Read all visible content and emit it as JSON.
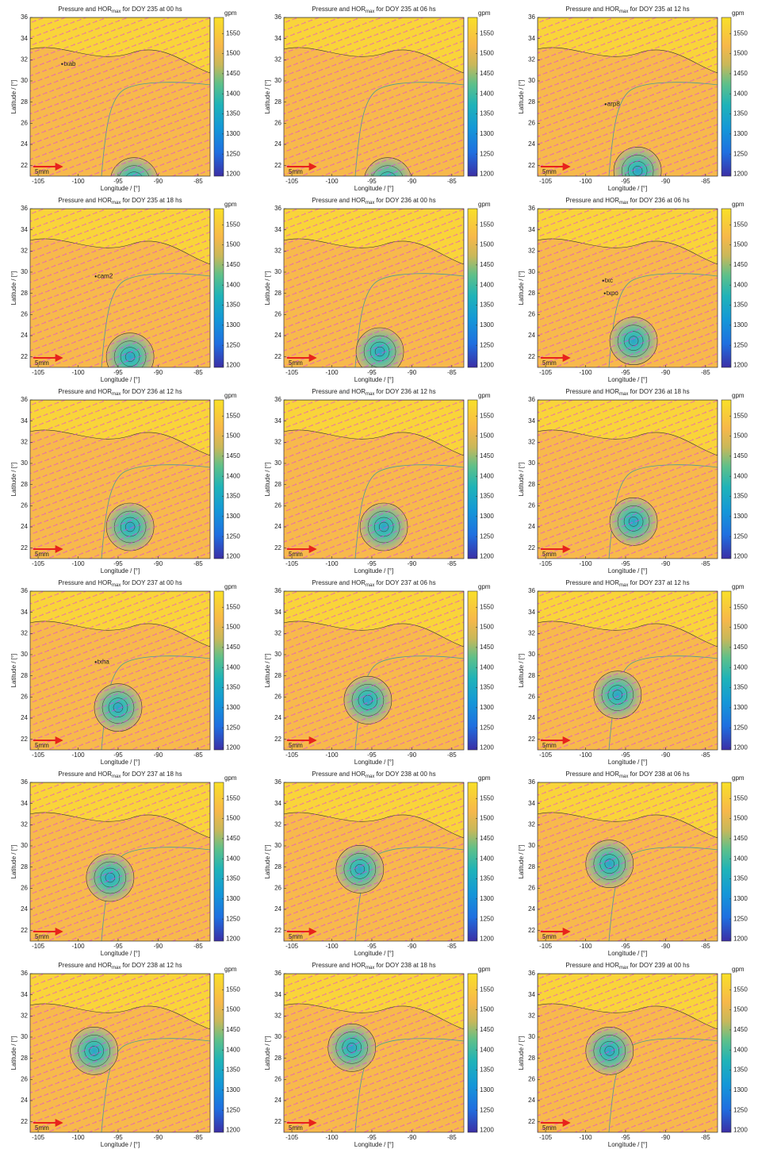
{
  "chart_data": [
    {
      "type": "map",
      "title": [
        "Pressure and HOR",
        "max",
        " for DOY 235 at 00 hs"
      ],
      "xlabel": "Longitude / [°]",
      "ylabel": "Latitude / [°]",
      "xlim": [
        -106,
        -83.5
      ],
      "xticks": [
        -105,
        -100,
        -95,
        -90,
        -85
      ],
      "ylim": [
        21,
        36
      ],
      "yticks": [
        22,
        24,
        26,
        28,
        30,
        32,
        34,
        36
      ],
      "colorbar": {
        "label": "gpm",
        "lim": [
          1195,
          1590
        ],
        "ticks": [
          1200,
          1250,
          1300,
          1350,
          1400,
          1450,
          1500,
          1550
        ]
      },
      "scale_label": "5mm",
      "center": {
        "lon": -93,
        "lat": 20.5
      },
      "annotations": [
        {
          "text": "txab",
          "lon": -102,
          "lat": 31.6
        }
      ]
    },
    {
      "type": "map",
      "title": [
        "Pressure and HOR",
        "max",
        " for DOY 235 at 06 hs"
      ],
      "xlabel": "Longitude / [°]",
      "ylabel": "Latitude / [°]",
      "xlim": [
        -106,
        -83.5
      ],
      "xticks": [
        -105,
        -100,
        -95,
        -90,
        -85
      ],
      "ylim": [
        21,
        36
      ],
      "yticks": [
        22,
        24,
        26,
        28,
        30,
        32,
        34,
        36
      ],
      "colorbar": {
        "label": "gpm",
        "lim": [
          1195,
          1590
        ],
        "ticks": [
          1200,
          1250,
          1300,
          1350,
          1400,
          1450,
          1500,
          1550
        ]
      },
      "scale_label": "5mm",
      "center": {
        "lon": -93,
        "lat": 20.5
      },
      "annotations": []
    },
    {
      "type": "map",
      "title": [
        "Pressure and HOR",
        "max",
        " for DOY 235 at 12 hs"
      ],
      "xlabel": "Longitude / [°]",
      "ylabel": "Latitude / [°]",
      "xlim": [
        -106,
        -83.5
      ],
      "xticks": [
        -105,
        -100,
        -95,
        -90,
        -85
      ],
      "ylim": [
        21,
        36
      ],
      "yticks": [
        22,
        24,
        26,
        28,
        30,
        32,
        34,
        36
      ],
      "colorbar": {
        "label": "gpm",
        "lim": [
          1195,
          1590
        ],
        "ticks": [
          1200,
          1250,
          1300,
          1350,
          1400,
          1450,
          1500,
          1550
        ]
      },
      "scale_label": "5mm",
      "center": {
        "lon": -93.5,
        "lat": 21.5
      },
      "annotations": [
        {
          "text": "arp8",
          "lon": -97.5,
          "lat": 27.8
        }
      ]
    },
    {
      "type": "map",
      "title": [
        "Pressure and HOR",
        "max",
        " for DOY 235 at 18 hs"
      ],
      "xlabel": "Longitude / [°]",
      "ylabel": "Latitude / [°]",
      "xlim": [
        -106,
        -83.5
      ],
      "xticks": [
        -105,
        -100,
        -95,
        -90,
        -85
      ],
      "ylim": [
        21,
        36
      ],
      "yticks": [
        22,
        24,
        26,
        28,
        30,
        32,
        34,
        36
      ],
      "colorbar": {
        "label": "gpm",
        "lim": [
          1195,
          1590
        ],
        "ticks": [
          1200,
          1250,
          1300,
          1350,
          1400,
          1450,
          1500,
          1550
        ]
      },
      "scale_label": "5mm",
      "center": {
        "lon": -93.5,
        "lat": 22
      },
      "annotations": [
        {
          "text": "cam2",
          "lon": -97.8,
          "lat": 29.6
        }
      ]
    },
    {
      "type": "map",
      "title": [
        "Pressure and HOR",
        "max",
        " for DOY 236 at 00 hs"
      ],
      "xlabel": "Longitude / [°]",
      "ylabel": "Latitude / [°]",
      "xlim": [
        -106,
        -83.5
      ],
      "xticks": [
        -105,
        -100,
        -95,
        -90,
        -85
      ],
      "ylim": [
        21,
        36
      ],
      "yticks": [
        22,
        24,
        26,
        28,
        30,
        32,
        34,
        36
      ],
      "colorbar": {
        "label": "gpm",
        "lim": [
          1195,
          1590
        ],
        "ticks": [
          1200,
          1250,
          1300,
          1350,
          1400,
          1450,
          1500,
          1550
        ]
      },
      "scale_label": "5mm",
      "center": {
        "lon": -94,
        "lat": 22.5
      },
      "annotations": []
    },
    {
      "type": "map",
      "title": [
        "Pressure and HOR",
        "max",
        " for DOY 236 at 06 hs"
      ],
      "xlabel": "Longitude / [°]",
      "ylabel": "Latitude / [°]",
      "xlim": [
        -106,
        -83.5
      ],
      "xticks": [
        -105,
        -100,
        -95,
        -90,
        -85
      ],
      "ylim": [
        21,
        36
      ],
      "yticks": [
        22,
        24,
        26,
        28,
        30,
        32,
        34,
        36
      ],
      "colorbar": {
        "label": "gpm",
        "lim": [
          1195,
          1590
        ],
        "ticks": [
          1200,
          1250,
          1300,
          1350,
          1400,
          1450,
          1500,
          1550
        ]
      },
      "scale_label": "5mm",
      "center": {
        "lon": -94,
        "lat": 23.5
      },
      "annotations": [
        {
          "text": "txc",
          "lon": -97.8,
          "lat": 29.2
        },
        {
          "text": "txpo",
          "lon": -97.6,
          "lat": 28
        }
      ]
    },
    {
      "type": "map",
      "title": [
        "Pressure and HOR",
        "max",
        " for DOY 236 at 12 hs"
      ],
      "xlabel": "Longitude / [°]",
      "ylabel": "Latitude / [°]",
      "xlim": [
        -106,
        -83.5
      ],
      "xticks": [
        -105,
        -100,
        -95,
        -90,
        -85
      ],
      "ylim": [
        21,
        36
      ],
      "yticks": [
        22,
        24,
        26,
        28,
        30,
        32,
        34,
        36
      ],
      "colorbar": {
        "label": "gpm",
        "lim": [
          1195,
          1590
        ],
        "ticks": [
          1200,
          1250,
          1300,
          1350,
          1400,
          1450,
          1500,
          1550
        ]
      },
      "scale_label": "5mm",
      "center": {
        "lon": -93.5,
        "lat": 24
      },
      "annotations": []
    },
    {
      "type": "map",
      "title": [
        "Pressure and HOR",
        "max",
        " for DOY 236 at 12 hs"
      ],
      "xlabel": "Longitude / [°]",
      "ylabel": "Latitude / [°]",
      "xlim": [
        -106,
        -83.5
      ],
      "xticks": [
        -105,
        -100,
        -95,
        -90,
        -85
      ],
      "ylim": [
        21,
        36
      ],
      "yticks": [
        22,
        24,
        26,
        28,
        30,
        32,
        34,
        36
      ],
      "colorbar": {
        "label": "gpm",
        "lim": [
          1195,
          1590
        ],
        "ticks": [
          1200,
          1250,
          1300,
          1350,
          1400,
          1450,
          1500,
          1550
        ]
      },
      "scale_label": "5mm",
      "center": {
        "lon": -93.5,
        "lat": 24
      },
      "annotations": []
    },
    {
      "type": "map",
      "title": [
        "Pressure and HOR",
        "max",
        " for DOY 236 at 18 hs"
      ],
      "xlabel": "Longitude / [°]",
      "ylabel": "Latitude / [°]",
      "xlim": [
        -106,
        -83.5
      ],
      "xticks": [
        -105,
        -100,
        -95,
        -90,
        -85
      ],
      "ylim": [
        21,
        36
      ],
      "yticks": [
        22,
        24,
        26,
        28,
        30,
        32,
        34,
        36
      ],
      "colorbar": {
        "label": "gpm",
        "lim": [
          1195,
          1590
        ],
        "ticks": [
          1200,
          1250,
          1300,
          1350,
          1400,
          1450,
          1500,
          1550
        ]
      },
      "scale_label": "5mm",
      "center": {
        "lon": -94,
        "lat": 24.5
      },
      "annotations": []
    },
    {
      "type": "map",
      "title": [
        "Pressure and HOR",
        "max",
        " for DOY 237 at 00 hs"
      ],
      "xlabel": "Longitude / [°]",
      "ylabel": "Latitude / [°]",
      "xlim": [
        -106,
        -83.5
      ],
      "xticks": [
        -105,
        -100,
        -95,
        -90,
        -85
      ],
      "ylim": [
        21,
        36
      ],
      "yticks": [
        22,
        24,
        26,
        28,
        30,
        32,
        34,
        36
      ],
      "colorbar": {
        "label": "gpm",
        "lim": [
          1195,
          1590
        ],
        "ticks": [
          1200,
          1250,
          1300,
          1350,
          1400,
          1450,
          1500,
          1550
        ]
      },
      "scale_label": "5mm",
      "center": {
        "lon": -95,
        "lat": 25
      },
      "annotations": [
        {
          "text": "txha",
          "lon": -97.8,
          "lat": 29.3
        }
      ]
    },
    {
      "type": "map",
      "title": [
        "Pressure and HOR",
        "max",
        " for DOY 237 at 06 hs"
      ],
      "xlabel": "Longitude / [°]",
      "ylabel": "Latitude / [°]",
      "xlim": [
        -106,
        -83.5
      ],
      "xticks": [
        -105,
        -100,
        -95,
        -90,
        -85
      ],
      "ylim": [
        21,
        36
      ],
      "yticks": [
        22,
        24,
        26,
        28,
        30,
        32,
        34,
        36
      ],
      "colorbar": {
        "label": "gpm",
        "lim": [
          1195,
          1590
        ],
        "ticks": [
          1200,
          1250,
          1300,
          1350,
          1400,
          1450,
          1500,
          1550
        ]
      },
      "scale_label": "5mm",
      "center": {
        "lon": -95.5,
        "lat": 25.7
      },
      "annotations": []
    },
    {
      "type": "map",
      "title": [
        "Pressure and HOR",
        "max",
        " for DOY 237 at 12 hs"
      ],
      "xlabel": "Longitude / [°]",
      "ylabel": "Latitude / [°]",
      "xlim": [
        -106,
        -83.5
      ],
      "xticks": [
        -105,
        -100,
        -95,
        -90,
        -85
      ],
      "ylim": [
        21,
        36
      ],
      "yticks": [
        22,
        24,
        26,
        28,
        30,
        32,
        34,
        36
      ],
      "colorbar": {
        "label": "gpm",
        "lim": [
          1195,
          1590
        ],
        "ticks": [
          1200,
          1250,
          1300,
          1350,
          1400,
          1450,
          1500,
          1550
        ]
      },
      "scale_label": "5mm",
      "center": {
        "lon": -96,
        "lat": 26.2
      },
      "annotations": []
    },
    {
      "type": "map",
      "title": [
        "Pressure and HOR",
        "max",
        " for DOY 237 at 18 hs"
      ],
      "xlabel": "Longitude / [°]",
      "ylabel": "Latitude / [°]",
      "xlim": [
        -106,
        -83.5
      ],
      "xticks": [
        -105,
        -100,
        -95,
        -90,
        -85
      ],
      "ylim": [
        21,
        36
      ],
      "yticks": [
        22,
        24,
        26,
        28,
        30,
        32,
        34,
        36
      ],
      "colorbar": {
        "label": "gpm",
        "lim": [
          1195,
          1590
        ],
        "ticks": [
          1200,
          1250,
          1300,
          1350,
          1400,
          1450,
          1500,
          1550
        ]
      },
      "scale_label": "5mm",
      "center": {
        "lon": -96,
        "lat": 27
      },
      "annotations": []
    },
    {
      "type": "map",
      "title": [
        "Pressure and HOR",
        "max",
        " for DOY 238 at 00 hs"
      ],
      "xlabel": "Longitude / [°]",
      "ylabel": "Latitude / [°]",
      "xlim": [
        -106,
        -83.5
      ],
      "xticks": [
        -105,
        -100,
        -95,
        -90,
        -85
      ],
      "ylim": [
        21,
        36
      ],
      "yticks": [
        22,
        24,
        26,
        28,
        30,
        32,
        34,
        36
      ],
      "colorbar": {
        "label": "gpm",
        "lim": [
          1195,
          1590
        ],
        "ticks": [
          1200,
          1250,
          1300,
          1350,
          1400,
          1450,
          1500,
          1550
        ]
      },
      "scale_label": "5mm",
      "center": {
        "lon": -96.5,
        "lat": 27.8
      },
      "annotations": []
    },
    {
      "type": "map",
      "title": [
        "Pressure and HOR",
        "max",
        " for DOY 238 at 06 hs"
      ],
      "xlabel": "Longitude / [°]",
      "ylabel": "Latitude / [°]",
      "xlim": [
        -106,
        -83.5
      ],
      "xticks": [
        -105,
        -100,
        -95,
        -90,
        -85
      ],
      "ylim": [
        21,
        36
      ],
      "yticks": [
        22,
        24,
        26,
        28,
        30,
        32,
        34,
        36
      ],
      "colorbar": {
        "label": "gpm",
        "lim": [
          1195,
          1590
        ],
        "ticks": [
          1200,
          1250,
          1300,
          1350,
          1400,
          1450,
          1500,
          1550
        ]
      },
      "scale_label": "5mm",
      "center": {
        "lon": -97,
        "lat": 28.3
      },
      "annotations": []
    },
    {
      "type": "map",
      "title": [
        "Pressure and HOR",
        "max",
        " for DOY 238 at 12 hs"
      ],
      "xlabel": "Longitude / [°]",
      "ylabel": "Latitude / [°]",
      "xlim": [
        -106,
        -83.5
      ],
      "xticks": [
        -105,
        -100,
        -95,
        -90,
        -85
      ],
      "ylim": [
        21,
        36
      ],
      "yticks": [
        22,
        24,
        26,
        28,
        30,
        32,
        34,
        36
      ],
      "colorbar": {
        "label": "gpm",
        "lim": [
          1195,
          1590
        ],
        "ticks": [
          1200,
          1250,
          1300,
          1350,
          1400,
          1450,
          1500,
          1550
        ]
      },
      "scale_label": "5mm",
      "center": {
        "lon": -98,
        "lat": 28.7
      },
      "annotations": []
    },
    {
      "type": "map",
      "title": [
        "Pressure and HOR",
        "max",
        " for DOY 238 at 18 hs"
      ],
      "xlabel": "Longitude / [°]",
      "ylabel": "Latitude / [°]",
      "xlim": [
        -106,
        -83.5
      ],
      "xticks": [
        -105,
        -100,
        -95,
        -90,
        -85
      ],
      "ylim": [
        21,
        36
      ],
      "yticks": [
        22,
        24,
        26,
        28,
        30,
        32,
        34,
        36
      ],
      "colorbar": {
        "label": "gpm",
        "lim": [
          1195,
          1590
        ],
        "ticks": [
          1200,
          1250,
          1300,
          1350,
          1400,
          1450,
          1500,
          1550
        ]
      },
      "scale_label": "5mm",
      "center": {
        "lon": -97.5,
        "lat": 29
      },
      "annotations": []
    },
    {
      "type": "map",
      "title": [
        "Pressure and HOR",
        "max",
        " for DOY 239 at 00 hs"
      ],
      "xlabel": "Longitude / [°]",
      "ylabel": "Latitude / [°]",
      "xlim": [
        -106,
        -83.5
      ],
      "xticks": [
        -105,
        -100,
        -95,
        -90,
        -85
      ],
      "ylim": [
        21,
        36
      ],
      "yticks": [
        22,
        24,
        26,
        28,
        30,
        32,
        34,
        36
      ],
      "colorbar": {
        "label": "gpm",
        "lim": [
          1195,
          1590
        ],
        "ticks": [
          1200,
          1250,
          1300,
          1350,
          1400,
          1450,
          1500,
          1550
        ]
      },
      "scale_label": "5mm",
      "center": {
        "lon": -97,
        "lat": 28.7
      },
      "annotations": []
    }
  ]
}
